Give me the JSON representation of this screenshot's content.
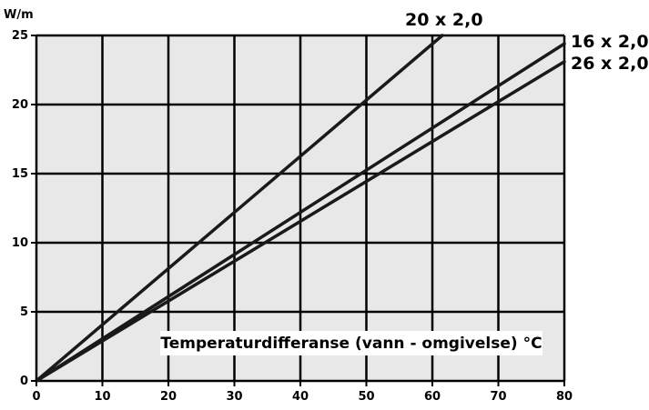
{
  "chart_data": {
    "type": "line",
    "title": "",
    "ylabel": "W/m",
    "xlabel": "Temperaturdifferanse (vann - omgivelse) °C",
    "xlim": [
      0,
      80
    ],
    "ylim": [
      0,
      25
    ],
    "xticks": [
      0,
      10,
      20,
      30,
      40,
      50,
      60,
      70,
      80
    ],
    "yticks": [
      0,
      5,
      10,
      15,
      20,
      25
    ],
    "grid": true,
    "legend": "none",
    "series": [
      {
        "name": "20 x 2,0",
        "x": [
          0,
          61.5
        ],
        "y": [
          0,
          25
        ]
      },
      {
        "name": "16 x 2,0",
        "x": [
          0,
          80
        ],
        "y": [
          0,
          24.4
        ]
      },
      {
        "name": "26 x 2,0",
        "x": [
          0,
          80
        ],
        "y": [
          0,
          23.1
        ]
      }
    ],
    "colors": {
      "plot_background": "#e8e8e8",
      "grid": "#000000",
      "line": "#1a1a1a",
      "label_box": "#ffffff"
    }
  }
}
